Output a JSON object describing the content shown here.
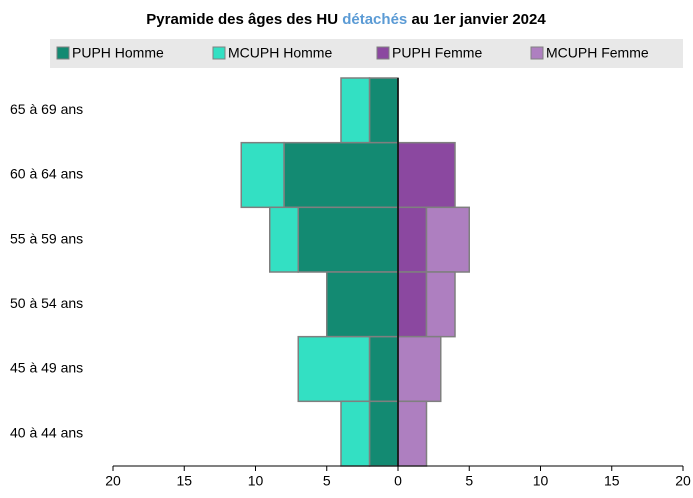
{
  "chart_data": {
    "type": "pyramid",
    "title_parts": [
      "Pyramide des âges des HU",
      "détachés",
      "au 1er janvier 2024"
    ],
    "title_highlight_color": "#5b9bd5",
    "categories": [
      "65 à 69 ans",
      "60 à 64 ans",
      "55 à 59 ans",
      "50 à 54 ans",
      "45 à 49 ans",
      "40 à 44 ans"
    ],
    "series": [
      {
        "name": "PUPH Homme",
        "color": "#138a72",
        "values": [
          -2,
          -8,
          -7,
          -5,
          -2,
          -2
        ]
      },
      {
        "name": "MCUPH Homme",
        "color": "#33e0c3",
        "values": [
          -2,
          -3,
          -2,
          0,
          -5,
          -2
        ]
      },
      {
        "name": "PUPH Femme",
        "color": "#8b48a0",
        "values": [
          0,
          4,
          2,
          2,
          0,
          0
        ]
      },
      {
        "name": "MCUPH Femme",
        "color": "#ae7fc0",
        "values": [
          0,
          0,
          3,
          2,
          3,
          2
        ]
      }
    ],
    "xlim": [
      -20,
      20
    ],
    "xticks": [
      {
        "value": -20,
        "label": "20"
      },
      {
        "value": -15,
        "label": "15"
      },
      {
        "value": -10,
        "label": "10"
      },
      {
        "value": -5,
        "label": "5"
      },
      0,
      5,
      10,
      15,
      20
    ],
    "legend": "top"
  }
}
